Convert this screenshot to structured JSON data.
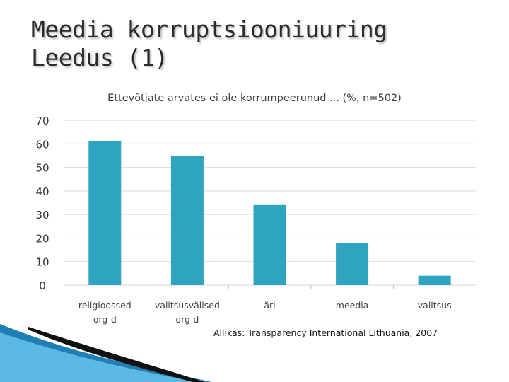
{
  "slide": {
    "title_line1": "Meedia korruptsiooniuuring",
    "title_line2": "Leedus (1)",
    "source": "Allikas: Transparency International Lithuania, 2007"
  },
  "colors": {
    "bar": "#2ea4c1",
    "grid": "#d9d9d9",
    "text": "#404040"
  },
  "chart_data": {
    "type": "bar",
    "title": "Ettevõtjate arvates ei ole korrumpeerunud ... (%, n=502)",
    "categories": [
      [
        "religioossed",
        "org-d"
      ],
      [
        "valitsusvälised",
        "org-d"
      ],
      [
        "äri"
      ],
      [
        "meedia"
      ],
      [
        "valitsus"
      ]
    ],
    "values": [
      61,
      55,
      34,
      18,
      4
    ],
    "ylim": [
      0,
      70
    ],
    "yticks": [
      0,
      10,
      20,
      30,
      40,
      50,
      60,
      70
    ],
    "xlabel": "",
    "ylabel": "",
    "grid": true,
    "legend": "none"
  }
}
